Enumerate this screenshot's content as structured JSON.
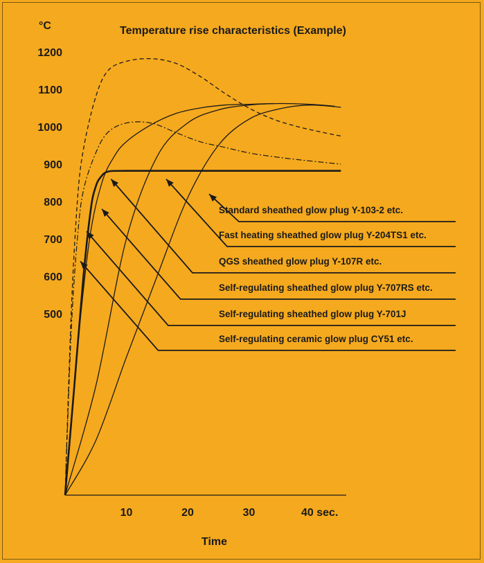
{
  "chart_data": {
    "type": "line",
    "title": "Temperature rise characteristics (Example)",
    "yunit": "°C",
    "xlabel": "Time",
    "xlim": [
      0,
      47
    ],
    "ylim": [
      0,
      1240
    ],
    "yaxis_note": "Temperature axis is nonlinear; only 500–1200 °C are labeled",
    "y_ticks": [
      {
        "label": "1200",
        "value": 1200
      },
      {
        "label": "1100",
        "value": 1100
      },
      {
        "label": "1000",
        "value": 1000
      },
      {
        "label": "900",
        "value": 900
      },
      {
        "label": "800",
        "value": 800
      },
      {
        "label": "700",
        "value": 700
      },
      {
        "label": "600",
        "value": 600
      },
      {
        "label": "500",
        "value": 500
      }
    ],
    "x_ticks": [
      {
        "label": "10",
        "value": 10
      },
      {
        "label": "20",
        "value": 20
      },
      {
        "label": "30",
        "value": 30
      },
      {
        "label": "40 sec.",
        "value": 40
      }
    ],
    "series": [
      {
        "name": "Standard sheathed glow plug Y-103-2 etc.",
        "style": "solid",
        "points": [
          [
            0,
            0
          ],
          [
            5,
            150
          ],
          [
            10,
            380
          ],
          [
            15,
            600
          ],
          [
            20,
            810
          ],
          [
            25,
            950
          ],
          [
            30,
            1020
          ],
          [
            35,
            1048
          ],
          [
            40,
            1058
          ],
          [
            45,
            1052
          ]
        ],
        "label_arrow_target": [
          23.5,
          820
        ]
      },
      {
        "name": "Fast heating sheathed glow plug Y-204TS1 etc.",
        "style": "solid",
        "points": [
          [
            0,
            0
          ],
          [
            5,
            300
          ],
          [
            10,
            700
          ],
          [
            15,
            920
          ],
          [
            20,
            1010
          ],
          [
            25,
            1045
          ],
          [
            30,
            1058
          ],
          [
            35,
            1062
          ],
          [
            40,
            1060
          ],
          [
            44,
            1055
          ]
        ],
        "label_arrow_target": [
          16.5,
          860
        ]
      },
      {
        "name": "QGS sheathed glow plug Y-107R etc.",
        "style": "solid",
        "points": [
          [
            0,
            0
          ],
          [
            2,
            400
          ],
          [
            4,
            700
          ],
          [
            6,
            850
          ],
          [
            8,
            920
          ],
          [
            10,
            960
          ],
          [
            14,
            1005
          ],
          [
            18,
            1035
          ],
          [
            22,
            1050
          ],
          [
            26,
            1058
          ],
          [
            30,
            1060
          ],
          [
            34,
            1062
          ]
        ],
        "label_arrow_target": [
          7.5,
          860
        ]
      },
      {
        "name": "Self-regulating sheathed glow plug Y-707RS etc.",
        "style": "dashed",
        "points": [
          [
            0,
            0
          ],
          [
            1,
            500
          ],
          [
            2,
            800
          ],
          [
            3,
            940
          ],
          [
            5,
            1080
          ],
          [
            7,
            1150
          ],
          [
            10,
            1175
          ],
          [
            14,
            1182
          ],
          [
            18,
            1170
          ],
          [
            22,
            1135
          ],
          [
            26,
            1090
          ],
          [
            30,
            1050
          ],
          [
            34,
            1020
          ],
          [
            38,
            1000
          ],
          [
            42,
            985
          ],
          [
            45,
            975
          ]
        ],
        "label_arrow_target": [
          6.0,
          780
        ]
      },
      {
        "name": "Self-regulating sheathed glow plug Y-701J",
        "style": "dashdot",
        "points": [
          [
            0,
            0
          ],
          [
            1,
            450
          ],
          [
            2,
            700
          ],
          [
            3,
            830
          ],
          [
            5,
            930
          ],
          [
            7,
            985
          ],
          [
            10,
            1010
          ],
          [
            14,
            1010
          ],
          [
            18,
            985
          ],
          [
            22,
            960
          ],
          [
            26,
            945
          ],
          [
            30,
            930
          ],
          [
            34,
            920
          ],
          [
            38,
            912
          ],
          [
            42,
            905
          ],
          [
            45,
            900
          ]
        ],
        "label_arrow_target": [
          3.5,
          720
        ]
      },
      {
        "name": "Self-regulating ceramic glow plug CY51 etc.",
        "style": "bold",
        "points": [
          [
            0,
            0
          ],
          [
            1.5,
            300
          ],
          [
            3,
            600
          ],
          [
            4.2,
            780
          ],
          [
            5,
            840
          ],
          [
            5.8,
            865
          ],
          [
            7,
            880
          ],
          [
            10,
            882
          ],
          [
            20,
            882
          ],
          [
            30,
            882
          ],
          [
            40,
            882
          ],
          [
            45,
            882
          ]
        ],
        "label_arrow_target": [
          2.5,
          640
        ]
      }
    ]
  }
}
